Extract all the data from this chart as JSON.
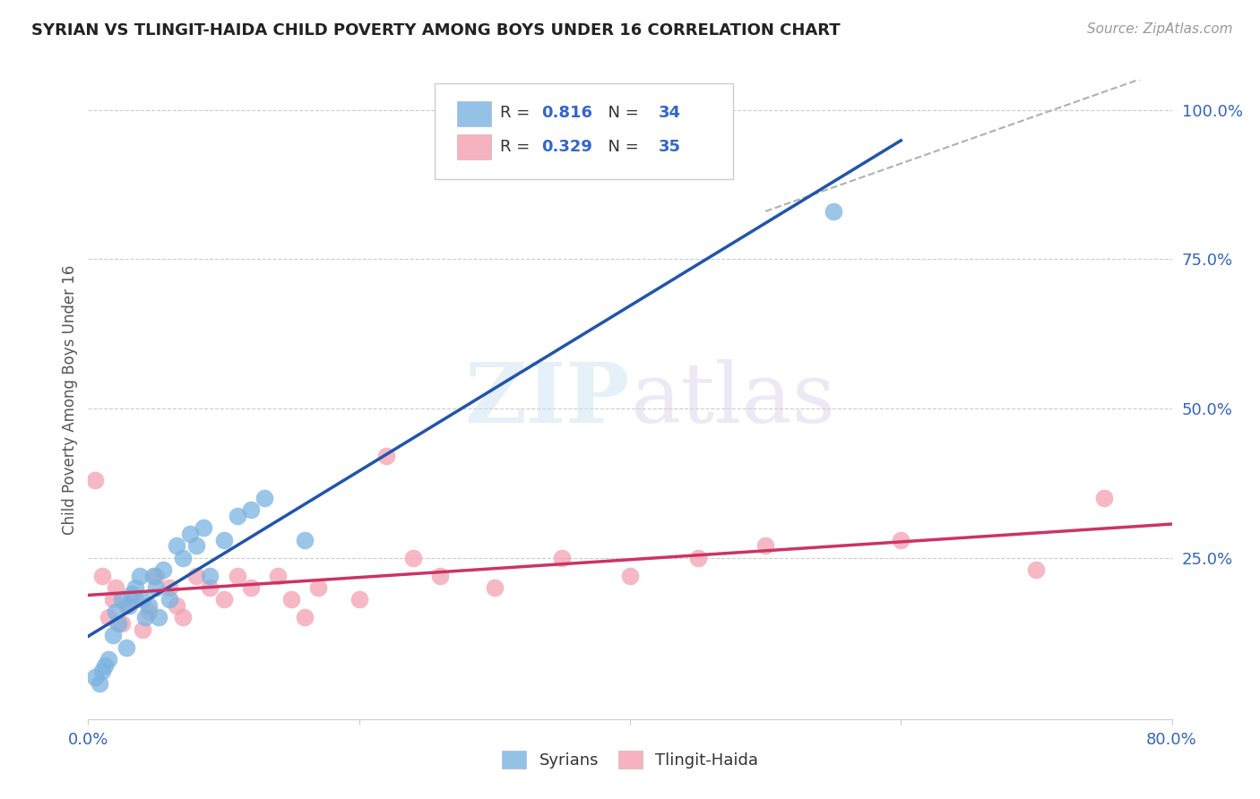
{
  "title": "SYRIAN VS TLINGIT-HAIDA CHILD POVERTY AMONG BOYS UNDER 16 CORRELATION CHART",
  "source": "Source: ZipAtlas.com",
  "ylabel": "Child Poverty Among Boys Under 16",
  "xlim": [
    0.0,
    0.8
  ],
  "ylim": [
    -0.02,
    1.05
  ],
  "y_ticks_right": [
    0.25,
    0.5,
    0.75,
    1.0
  ],
  "y_tick_labels_right": [
    "25.0%",
    "50.0%",
    "75.0%",
    "100.0%"
  ],
  "syrian_color": "#7ab3e0",
  "tlingit_color": "#f4a0b0",
  "syrian_line_color": "#2255aa",
  "tlingit_line_color": "#cc3366",
  "R_syrian": 0.816,
  "N_syrian": 34,
  "R_tlingit": 0.329,
  "N_tlingit": 35,
  "background_color": "#ffffff",
  "grid_color": "#cccccc",
  "syrian_x": [
    0.005,
    0.008,
    0.01,
    0.012,
    0.015,
    0.018,
    0.02,
    0.022,
    0.025,
    0.028,
    0.03,
    0.032,
    0.035,
    0.038,
    0.04,
    0.042,
    0.045,
    0.048,
    0.05,
    0.052,
    0.055,
    0.06,
    0.065,
    0.07,
    0.075,
    0.08,
    0.085,
    0.09,
    0.1,
    0.11,
    0.12,
    0.13,
    0.16,
    0.55
  ],
  "syrian_y": [
    0.05,
    0.04,
    0.06,
    0.07,
    0.08,
    0.12,
    0.16,
    0.14,
    0.18,
    0.1,
    0.17,
    0.19,
    0.2,
    0.22,
    0.18,
    0.15,
    0.17,
    0.22,
    0.2,
    0.15,
    0.23,
    0.18,
    0.27,
    0.25,
    0.29,
    0.27,
    0.3,
    0.22,
    0.28,
    0.32,
    0.33,
    0.35,
    0.28,
    0.83
  ],
  "tlingit_x": [
    0.005,
    0.01,
    0.015,
    0.018,
    0.02,
    0.025,
    0.028,
    0.035,
    0.04,
    0.045,
    0.05,
    0.06,
    0.065,
    0.07,
    0.08,
    0.09,
    0.1,
    0.11,
    0.12,
    0.14,
    0.15,
    0.16,
    0.17,
    0.2,
    0.22,
    0.24,
    0.26,
    0.3,
    0.35,
    0.4,
    0.45,
    0.5,
    0.6,
    0.7,
    0.75
  ],
  "tlingit_y": [
    0.38,
    0.22,
    0.15,
    0.18,
    0.2,
    0.14,
    0.17,
    0.18,
    0.13,
    0.16,
    0.22,
    0.2,
    0.17,
    0.15,
    0.22,
    0.2,
    0.18,
    0.22,
    0.2,
    0.22,
    0.18,
    0.15,
    0.2,
    0.18,
    0.42,
    0.25,
    0.22,
    0.2,
    0.25,
    0.22,
    0.25,
    0.27,
    0.28,
    0.23,
    0.35
  ]
}
